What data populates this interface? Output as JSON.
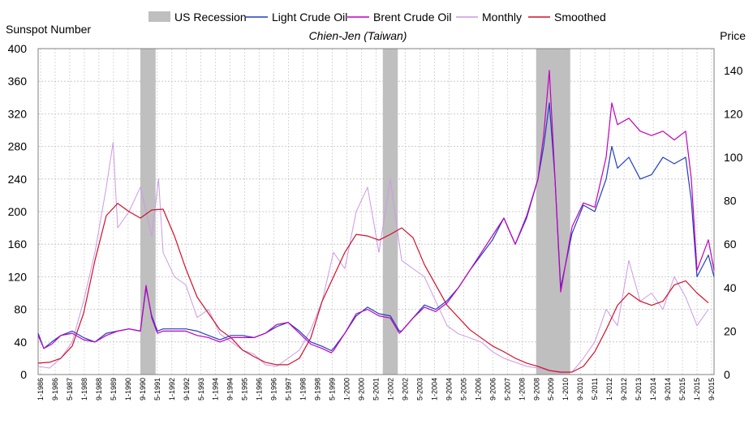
{
  "chart_data": {
    "type": "line",
    "title": "Chien-Jen (Taiwan)",
    "ylabel_left": "Sunspot Number",
    "ylabel_right": "Price",
    "ylim_left": [
      0,
      400
    ],
    "ylim_right": [
      0,
      150
    ],
    "yticks_left": [
      0,
      40,
      80,
      120,
      160,
      200,
      240,
      280,
      320,
      360,
      400
    ],
    "yticks_right": [
      0,
      20,
      40,
      60,
      80,
      100,
      120,
      140
    ],
    "xlim": [
      1986.0,
      2015.75
    ],
    "xtick_labels": [
      "1-1986",
      "9-1986",
      "5-1987",
      "1-1988",
      "9-1988",
      "5-1989",
      "1-1990",
      "9-1990",
      "5-1991",
      "1-1992",
      "9-1992",
      "5-1993",
      "1-1994",
      "9-1994",
      "5-1995",
      "1-1996",
      "9-1996",
      "5-1997",
      "1-1998",
      "9-1998",
      "5-1999",
      "1-2000",
      "9-2000",
      "5-2001",
      "1-2002",
      "9-2002",
      "5-2003",
      "1-2004",
      "9-2004",
      "5-2005",
      "1-2006",
      "9-2006",
      "5-2007",
      "1-2008",
      "9-2008",
      "5-2009",
      "1-2010",
      "9-2010",
      "5-2011",
      "1-2012",
      "9-2012",
      "5-2013",
      "1-2014",
      "9-2014",
      "5-2015",
      "1-2015",
      "9-2015"
    ],
    "legend": [
      "US Recession",
      "Light Crude Oil",
      "Brent Crude Oil",
      "Monthly",
      "Smoothed"
    ],
    "colors": {
      "recession": "#bfbfbf",
      "light_crude": "#1f3fbf",
      "brent_crude": "#c000c0",
      "monthly": "#cc99e6",
      "smoothed": "#d0102a",
      "grid": "#bfbfbf"
    },
    "recessions": [
      [
        1990.5,
        1991.17
      ],
      [
        2001.17,
        2001.83
      ],
      [
        2007.92,
        2009.42
      ]
    ],
    "series": [
      {
        "name": "Smoothed",
        "axis": "left",
        "x": [
          1986.0,
          1986.5,
          1987.0,
          1987.5,
          1988.0,
          1988.5,
          1989.0,
          1989.5,
          1990.0,
          1990.5,
          1991.0,
          1991.5,
          1992.0,
          1992.5,
          1993.0,
          1993.5,
          1994.0,
          1994.5,
          1995.0,
          1995.5,
          1996.0,
          1996.5,
          1997.0,
          1997.5,
          1998.0,
          1998.5,
          1999.0,
          1999.5,
          2000.0,
          2000.5,
          2001.0,
          2001.5,
          2002.0,
          2002.5,
          2003.0,
          2003.5,
          2004.0,
          2004.5,
          2005.0,
          2005.5,
          2006.0,
          2006.5,
          2007.0,
          2007.5,
          2008.0,
          2008.5,
          2009.0,
          2009.5,
          2010.0,
          2010.5,
          2011.0,
          2011.5,
          2012.0,
          2012.5,
          2013.0,
          2013.5,
          2014.0,
          2014.5,
          2015.0,
          2015.5
        ],
        "values": [
          14,
          15,
          20,
          35,
          75,
          140,
          195,
          210,
          200,
          192,
          202,
          203,
          170,
          130,
          95,
          75,
          55,
          45,
          30,
          22,
          15,
          12,
          12,
          20,
          45,
          90,
          120,
          150,
          172,
          170,
          165,
          172,
          180,
          168,
          135,
          110,
          85,
          70,
          55,
          45,
          35,
          28,
          20,
          14,
          10,
          5,
          3,
          3,
          10,
          28,
          55,
          85,
          100,
          90,
          85,
          90,
          110,
          115,
          100,
          88
        ]
      },
      {
        "name": "Monthly",
        "axis": "left",
        "x": [
          1986.0,
          1986.5,
          1987.0,
          1987.5,
          1988.0,
          1988.5,
          1989.0,
          1989.3,
          1989.5,
          1990.0,
          1990.5,
          1991.0,
          1991.3,
          1991.5,
          1992.0,
          1992.5,
          1993.0,
          1993.5,
          1994.0,
          1994.5,
          1995.0,
          1995.5,
          1996.0,
          1996.5,
          1997.0,
          1997.5,
          1998.0,
          1998.5,
          1999.0,
          1999.5,
          2000.0,
          2000.5,
          2001.0,
          2001.5,
          2002.0,
          2002.5,
          2003.0,
          2003.5,
          2004.0,
          2004.5,
          2005.0,
          2005.5,
          2006.0,
          2006.5,
          2007.0,
          2007.5,
          2008.0,
          2008.5,
          2009.0,
          2009.5,
          2010.0,
          2010.5,
          2011.0,
          2011.5,
          2012.0,
          2012.5,
          2013.0,
          2013.5,
          2014.0,
          2014.5,
          2015.0,
          2015.5
        ],
        "values": [
          10,
          8,
          20,
          40,
          90,
          150,
          230,
          285,
          180,
          200,
          230,
          170,
          240,
          150,
          120,
          110,
          70,
          80,
          50,
          40,
          30,
          25,
          12,
          10,
          20,
          30,
          55,
          90,
          150,
          130,
          200,
          230,
          150,
          240,
          140,
          130,
          120,
          90,
          60,
          50,
          45,
          40,
          28,
          20,
          15,
          10,
          8,
          5,
          2,
          3,
          20,
          40,
          80,
          60,
          140,
          90,
          100,
          80,
          120,
          95,
          60,
          80
        ]
      },
      {
        "name": "Light Crude Oil",
        "axis": "right",
        "x": [
          1986.0,
          1986.25,
          1986.6,
          1987.0,
          1987.5,
          1988.0,
          1988.5,
          1989.0,
          1989.5,
          1990.0,
          1990.5,
          1990.75,
          1991.0,
          1991.25,
          1991.5,
          1992.0,
          1992.5,
          1993.0,
          1993.5,
          1994.0,
          1994.5,
          1995.0,
          1995.5,
          1996.0,
          1996.5,
          1997.0,
          1997.5,
          1998.0,
          1998.5,
          1998.9,
          1999.0,
          1999.5,
          2000.0,
          2000.5,
          2001.0,
          2001.5,
          2001.9,
          2002.0,
          2002.5,
          2003.0,
          2003.5,
          2004.0,
          2004.5,
          2005.0,
          2005.5,
          2006.0,
          2006.5,
          2007.0,
          2007.5,
          2008.0,
          2008.25,
          2008.5,
          2008.75,
          2009.0,
          2009.5,
          2010.0,
          2010.5,
          2011.0,
          2011.25,
          2011.5,
          2012.0,
          2012.5,
          2013.0,
          2013.5,
          2014.0,
          2014.5,
          2014.75,
          2015.0,
          2015.5,
          2015.75
        ],
        "values": [
          19,
          12,
          15,
          18,
          20,
          17,
          15,
          19,
          20,
          21,
          20,
          40,
          27,
          20,
          21,
          21,
          21,
          20,
          18,
          16,
          18,
          18,
          17,
          19,
          22,
          24,
          20,
          15,
          13,
          11,
          12,
          19,
          27,
          31,
          28,
          27,
          20,
          20,
          26,
          32,
          30,
          34,
          40,
          48,
          55,
          62,
          72,
          60,
          72,
          90,
          105,
          125,
          90,
          40,
          65,
          78,
          75,
          90,
          105,
          95,
          100,
          90,
          92,
          100,
          97,
          100,
          80,
          45,
          55,
          45
        ]
      },
      {
        "name": "Brent Crude Oil",
        "axis": "right",
        "x": [
          1986.0,
          1986.25,
          1986.6,
          1987.0,
          1987.5,
          1988.0,
          1988.5,
          1989.0,
          1989.5,
          1990.0,
          1990.5,
          1990.75,
          1991.0,
          1991.25,
          1991.5,
          1992.0,
          1992.5,
          1993.0,
          1993.5,
          1994.0,
          1994.5,
          1995.0,
          1995.5,
          1996.0,
          1996.5,
          1997.0,
          1997.5,
          1998.0,
          1998.5,
          1998.9,
          1999.0,
          1999.5,
          2000.0,
          2000.5,
          2001.0,
          2001.5,
          2001.9,
          2002.0,
          2002.5,
          2003.0,
          2003.5,
          2004.0,
          2004.5,
          2005.0,
          2005.5,
          2006.0,
          2006.5,
          2007.0,
          2007.5,
          2008.0,
          2008.25,
          2008.5,
          2008.75,
          2009.0,
          2009.5,
          2010.0,
          2010.5,
          2011.0,
          2011.25,
          2011.5,
          2012.0,
          2012.5,
          2013.0,
          2013.5,
          2014.0,
          2014.5,
          2014.75,
          2015.0,
          2015.5,
          2015.75
        ],
        "values": [
          18,
          12,
          14,
          18,
          19,
          16,
          15,
          18,
          20,
          21,
          20,
          41,
          26,
          19,
          20,
          20,
          20,
          18,
          17,
          15,
          17,
          17,
          17,
          19,
          23,
          24,
          19,
          14,
          12,
          10,
          11,
          19,
          28,
          30,
          27,
          26,
          19,
          20,
          26,
          31,
          29,
          33,
          40,
          48,
          56,
          64,
          72,
          60,
          73,
          90,
          110,
          140,
          90,
          38,
          68,
          79,
          77,
          100,
          125,
          115,
          118,
          112,
          110,
          112,
          108,
          112,
          90,
          48,
          62,
          48
        ]
      }
    ]
  }
}
